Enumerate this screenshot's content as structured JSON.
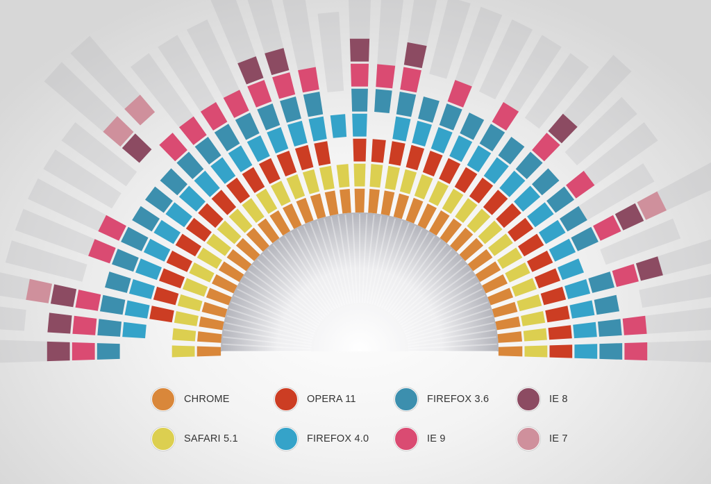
{
  "chart_data": {
    "type": "radial-stacked-bar",
    "series": [
      {
        "name": "CHROME",
        "color": "#d9873a"
      },
      {
        "name": "SAFARI 5.1",
        "color": "#dccf50"
      },
      {
        "name": "OPERA 11",
        "color": "#cc3d23"
      },
      {
        "name": "FIREFOX 4.0",
        "color": "#35a3c9"
      },
      {
        "name": "FIREFOX 3.6",
        "color": "#3c8fae"
      },
      {
        "name": "IE 9",
        "color": "#da4b72"
      },
      {
        "name": "IE 8",
        "color": "#8c4b62"
      },
      {
        "name": "IE 7",
        "color": "#cf909c"
      }
    ],
    "bar_count": 35,
    "bars": [
      [
        1,
        1,
        0,
        0,
        1,
        1,
        1
      ],
      [
        1,
        1,
        0,
        1,
        1,
        1,
        1,
        0
      ],
      [
        1,
        1,
        1,
        1,
        1,
        1,
        1,
        1
      ],
      [
        1,
        1,
        1,
        1,
        1,
        0
      ],
      [
        1,
        1,
        1,
        1,
        1,
        1
      ],
      [
        1,
        1,
        1,
        1,
        1,
        1
      ],
      [
        1,
        1,
        1,
        1,
        1,
        0
      ],
      [
        1,
        1,
        1,
        1,
        1,
        0
      ],
      [
        1,
        1,
        1,
        1,
        1,
        0,
        1,
        1
      ],
      [
        1,
        1,
        1,
        1,
        1,
        1,
        0,
        1
      ],
      [
        1,
        1,
        1,
        1,
        1,
        1
      ],
      [
        1,
        1,
        1,
        1,
        1,
        1
      ],
      [
        1,
        1,
        1,
        1,
        1,
        1
      ],
      [
        1,
        1,
        1,
        1,
        1,
        1,
        1
      ],
      [
        1,
        1,
        1,
        1,
        1,
        1,
        1
      ],
      [
        1,
        1,
        1,
        1,
        1,
        1
      ],
      [
        1,
        1,
        0,
        1,
        0
      ],
      [
        1,
        1,
        1,
        1,
        1,
        1,
        1
      ],
      [
        1,
        1,
        1,
        0,
        1,
        1
      ],
      [
        1,
        1,
        1,
        1,
        1,
        1,
        1
      ],
      [
        1,
        1,
        1,
        1,
        1,
        0
      ],
      [
        1,
        1,
        1,
        1,
        1,
        1
      ],
      [
        1,
        1,
        1,
        1,
        1,
        0
      ],
      [
        1,
        1,
        1,
        1,
        1,
        1
      ],
      [
        1,
        1,
        1,
        1,
        1,
        0
      ],
      [
        1,
        1,
        1,
        1,
        1,
        1,
        1
      ],
      [
        1,
        1,
        1,
        1,
        1,
        0
      ],
      [
        1,
        1,
        1,
        1,
        1,
        1
      ],
      [
        1,
        1,
        1,
        1,
        1
      ],
      [
        1,
        1,
        1,
        1,
        1,
        1,
        1,
        1
      ],
      [
        1,
        1,
        1,
        1,
        0
      ],
      [
        1,
        1,
        1,
        1,
        1,
        1,
        1
      ],
      [
        1,
        1,
        1,
        1,
        1,
        0
      ],
      [
        1,
        1,
        1,
        1,
        1,
        1
      ],
      [
        1,
        1,
        1,
        1,
        1,
        1
      ]
    ]
  },
  "legend": {
    "items": [
      {
        "label": "CHROME",
        "color": "#d9873a"
      },
      {
        "label": "OPERA 11",
        "color": "#cc3d23"
      },
      {
        "label": "FIREFOX 3.6",
        "color": "#3c8fae"
      },
      {
        "label": "IE 8",
        "color": "#8c4b62"
      },
      {
        "label": "SAFARI 5.1",
        "color": "#dccf50"
      },
      {
        "label": "FIREFOX 4.0",
        "color": "#35a3c9"
      },
      {
        "label": "IE 9",
        "color": "#da4b72"
      },
      {
        "label": "IE 7",
        "color": "#cf909c"
      }
    ]
  }
}
